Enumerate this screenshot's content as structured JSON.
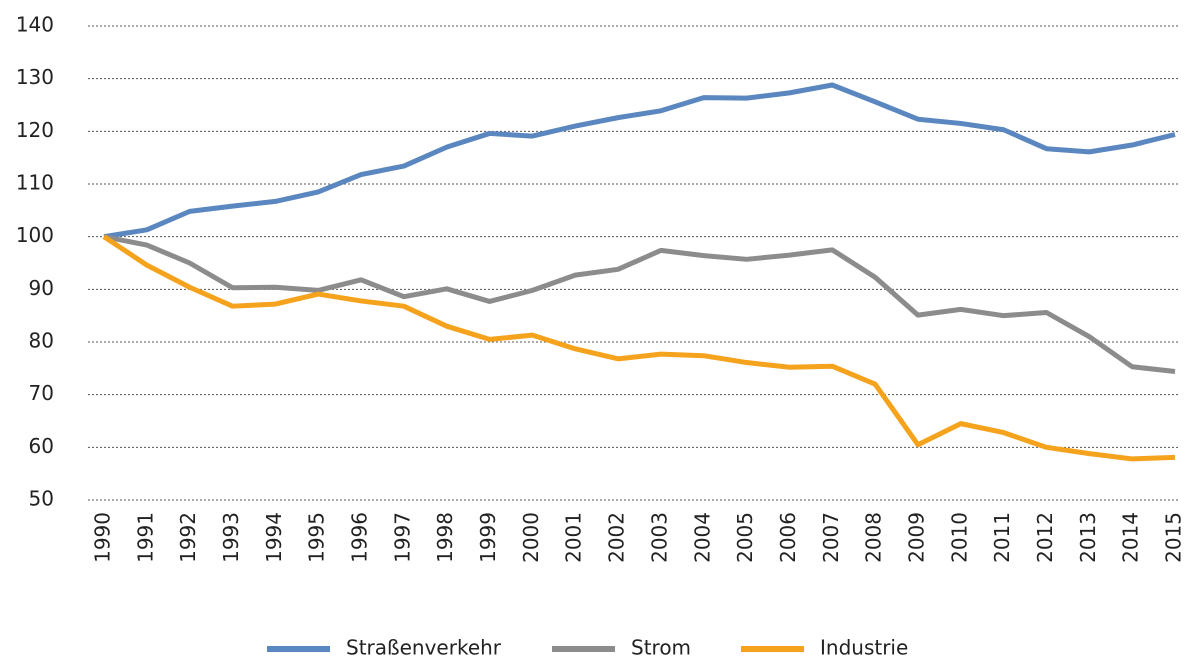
{
  "chart_data": {
    "type": "line",
    "categories": [
      "1990",
      "1991",
      "1992",
      "1993",
      "1994",
      "1995",
      "1996",
      "1997",
      "1998",
      "1999",
      "2000",
      "2001",
      "2002",
      "2003",
      "2004",
      "2005",
      "2006",
      "2007",
      "2008",
      "2009",
      "2010",
      "2011",
      "2012",
      "2013",
      "2014",
      "2015"
    ],
    "series": [
      {
        "name": "Straßenverkehr",
        "color": "#5b87c0",
        "values": [
          100,
          101.3,
          104.8,
          105.8,
          106.7,
          108.5,
          111.8,
          113.4,
          117,
          119.6,
          119.1,
          121,
          122.6,
          123.9,
          126.4,
          126.3,
          127.3,
          128.8,
          125.6,
          122.3,
          121.5,
          120.3,
          116.7,
          116.1,
          117.4,
          119.4
        ]
      },
      {
        "name": "Strom",
        "color": "#8c8c8c",
        "values": [
          100,
          98.4,
          95,
          90.3,
          90.4,
          89.8,
          91.8,
          88.6,
          90.1,
          87.7,
          89.8,
          92.7,
          93.8,
          97.4,
          96.4,
          95.7,
          96.5,
          97.5,
          92.3,
          85.1,
          86.2,
          85,
          85.6,
          81,
          75.3,
          74.4
        ]
      },
      {
        "name": "Industrie",
        "color": "#f5a21c",
        "values": [
          100,
          94.6,
          90.4,
          86.8,
          87.2,
          89.1,
          87.8,
          86.8,
          83,
          80.5,
          81.3,
          78.7,
          76.8,
          77.7,
          77.4,
          76.1,
          75.2,
          75.4,
          72,
          60.5,
          64.5,
          62.8,
          60,
          58.8,
          57.8,
          58.1
        ]
      }
    ],
    "ylim": [
      50,
      140
    ],
    "yticks": [
      50,
      60,
      70,
      80,
      90,
      100,
      110,
      120,
      130,
      140
    ],
    "grid": true,
    "legend": "bottom"
  }
}
